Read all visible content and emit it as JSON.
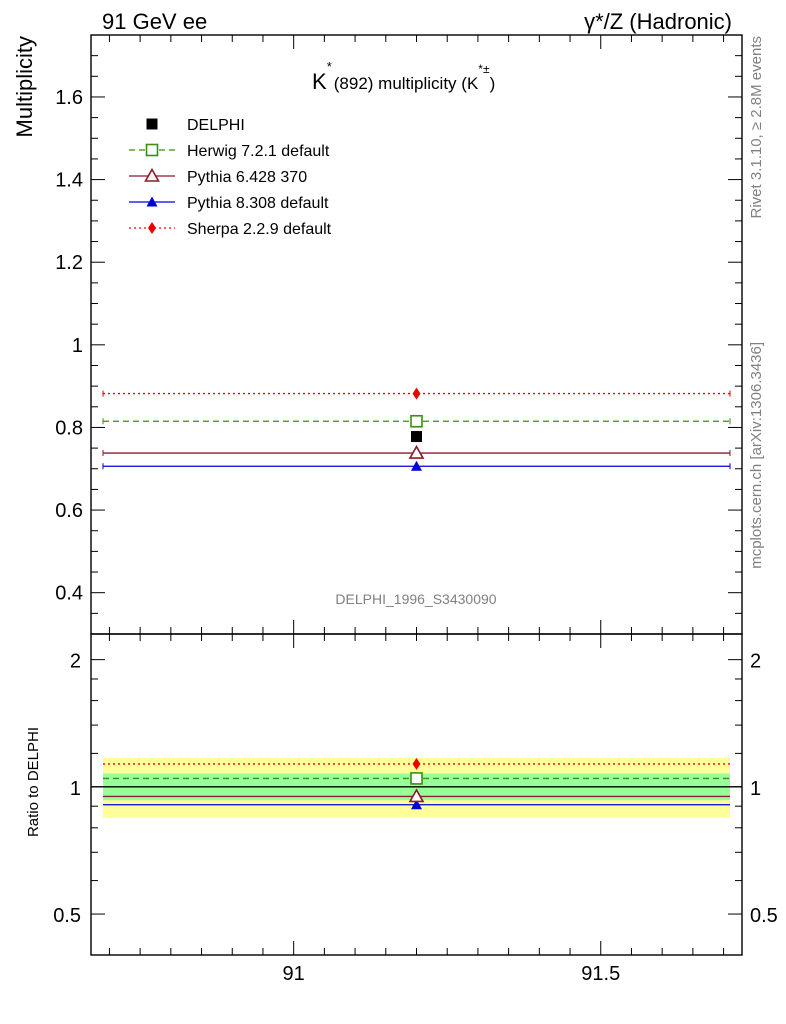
{
  "header": {
    "left": "91 GeV ee",
    "right": "γ*/Z (Hadronic)"
  },
  "side_labels": {
    "rivet": "Rivet 3.1.10, ≥ 2.8M events",
    "mcplots": "mcplots.cern.ch [arXiv:1306.3436]"
  },
  "analysis_tag": "DELPHI_1996_S3430090",
  "colors": {
    "data": "#000000",
    "herwig": "#3a8f0f",
    "pythia6": "#8b1a2a",
    "pythia8": "#0000dd",
    "sherpa": "#ee0000",
    "band_inner": "#99ff99",
    "band_outer": "#ffff99"
  },
  "chart_data": [
    {
      "type": "scatter",
      "title_main": "K",
      "title_sup1": "*",
      "title_rest": "(892) multiplicity (K",
      "title_sup2": "*±",
      "title_close": ")",
      "ylabel": "Multiplicity",
      "xlim": [
        90.67,
        91.73
      ],
      "ylim": [
        0.3,
        1.75
      ],
      "yticks": [
        0.4,
        0.6,
        0.8,
        1.0,
        1.2,
        1.4,
        1.6
      ],
      "ytick_labels": [
        "0.4",
        "0.6",
        "0.8",
        "1",
        "1.2",
        "1.4",
        "1.6"
      ],
      "legend_position": "top-left",
      "series": [
        {
          "key": "data",
          "name": "DELPHI",
          "marker": "filled-square",
          "line": "none",
          "x": 91.2,
          "y": 0.778
        },
        {
          "key": "herwig",
          "name": "Herwig 7.2.1 default",
          "marker": "open-square",
          "line": "dashed",
          "x": 91.2,
          "y": 0.815
        },
        {
          "key": "pythia6",
          "name": "Pythia 6.428 370",
          "marker": "open-triangle",
          "line": "solid",
          "x": 91.2,
          "y": 0.738
        },
        {
          "key": "pythia8",
          "name": "Pythia 8.308 default",
          "marker": "filled-triangle",
          "line": "solid",
          "x": 91.2,
          "y": 0.706
        },
        {
          "key": "sherpa",
          "name": "Sherpa 2.2.9 default",
          "marker": "filled-diamond",
          "line": "dotted",
          "x": 91.2,
          "y": 0.882
        }
      ]
    },
    {
      "type": "scatter",
      "ylabel": "Ratio to DELPHI",
      "xlim": [
        90.67,
        91.73
      ],
      "ylim": [
        0.4,
        2.3
      ],
      "log_y": true,
      "yticks": [
        0.5,
        1,
        2
      ],
      "ytick_labels": [
        "0.5",
        "1",
        "2"
      ],
      "xticks": [
        91,
        91.5
      ],
      "xtick_labels": [
        "91",
        "91.5"
      ],
      "bands": [
        {
          "kind": "outer",
          "low": 0.845,
          "high": 1.17
        },
        {
          "kind": "inner",
          "low": 0.93,
          "high": 1.075
        }
      ],
      "series": [
        {
          "key": "data",
          "y": 1.0
        },
        {
          "key": "herwig",
          "y": 1.047
        },
        {
          "key": "pythia6",
          "y": 0.949
        },
        {
          "key": "pythia8",
          "y": 0.907
        },
        {
          "key": "sherpa",
          "y": 1.133
        }
      ]
    }
  ]
}
